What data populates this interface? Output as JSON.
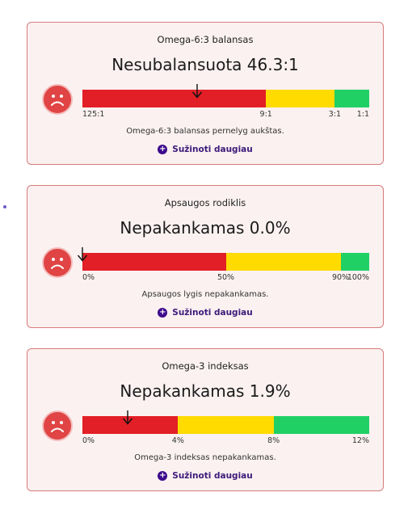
{
  "cards": [
    {
      "title": "Omega-6:3 balansas",
      "status": "Nesubalansuota 46.3:1",
      "level": 0.4,
      "segments": [
        {
          "color": "red",
          "fraction": 0.64
        },
        {
          "color": "yellow",
          "fraction": 0.24
        },
        {
          "color": "green",
          "fraction": 0.12
        }
      ],
      "ticks": [
        {
          "label": "125:1",
          "pos": 0
        },
        {
          "label": "9:1",
          "pos": 0.64
        },
        {
          "label": "3:1",
          "pos": 0.88
        },
        {
          "label": "1:1",
          "pos": 1
        }
      ],
      "description": "Omega-6:3 balansas pernelyg aukštas.",
      "more_label": "Sužinoti daugiau"
    },
    {
      "title": "Apsaugos rodiklis",
      "status": "Nepakankamas 0.0%",
      "level": 0.0,
      "segments": [
        {
          "color": "red",
          "fraction": 0.5
        },
        {
          "color": "yellow",
          "fraction": 0.4
        },
        {
          "color": "green",
          "fraction": 0.1
        }
      ],
      "ticks": [
        {
          "label": "0%",
          "pos": 0
        },
        {
          "label": "50%",
          "pos": 0.5
        },
        {
          "label": "90%",
          "pos": 0.9
        },
        {
          "label": "100%",
          "pos": 1
        }
      ],
      "description": "Apsaugos lygis nepakankamas.",
      "more_label": "Sužinoti daugiau"
    },
    {
      "title": "Omega-3 indeksas",
      "status": "Nepakankamas 1.9%",
      "level": 0.158,
      "segments": [
        {
          "color": "red",
          "fraction": 0.3333
        },
        {
          "color": "yellow",
          "fraction": 0.3333
        },
        {
          "color": "green",
          "fraction": 0.3334
        }
      ],
      "ticks": [
        {
          "label": "0%",
          "pos": 0
        },
        {
          "label": "4%",
          "pos": 0.3333
        },
        {
          "label": "8%",
          "pos": 0.6667
        },
        {
          "label": "12%",
          "pos": 1
        }
      ],
      "description": "Omega-3 indeksas nepakankamas.",
      "more_label": "Sužinoti daugiau"
    }
  ]
}
